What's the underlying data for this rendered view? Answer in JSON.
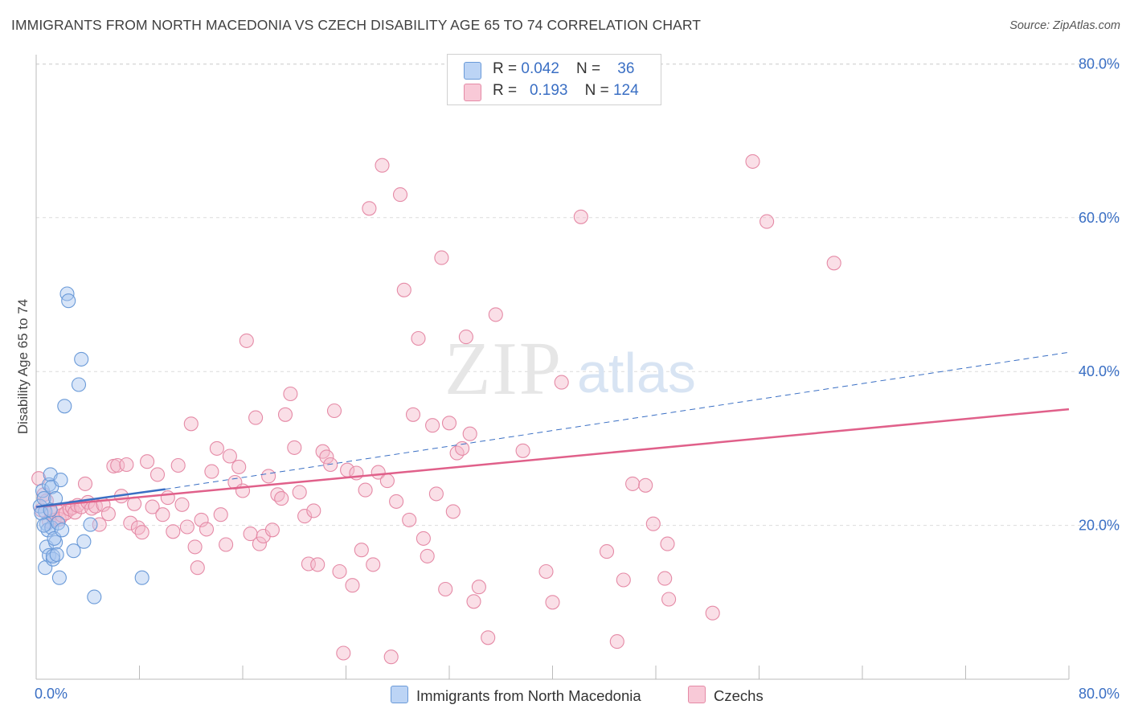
{
  "title": "IMMIGRANTS FROM NORTH MACEDONIA VS CZECH DISABILITY AGE 65 TO 74 CORRELATION CHART",
  "source": "Source: ZipAtlas.com",
  "watermark": {
    "zip": "ZIP",
    "atlas": "atlas"
  },
  "legend_top": [
    {
      "r_label": "R = ",
      "r_value": "0.042",
      "n_label": "N = ",
      "n_value": "36"
    },
    {
      "r_label": "R = ",
      "r_value": "0.193",
      "n_label": "N = ",
      "n_value": "124"
    }
  ],
  "colors": {
    "blue_fill": "#a9c6ef",
    "blue_stroke": "#6a9ad8",
    "blue_line": "#3a6fc4",
    "pink_fill": "#f5b7c9",
    "pink_stroke": "#e58aa6",
    "pink_line": "#e0608a",
    "axis_text": "#3a6fc4",
    "grid": "#dcdcdc"
  },
  "chart_data": {
    "type": "scatter",
    "title": "IMMIGRANTS FROM NORTH MACEDONIA VS CZECH DISABILITY AGE 65 TO 74 CORRELATION CHART",
    "xlabel": "",
    "ylabel": "Disability Age 65 to 74",
    "xlim": [
      0,
      80
    ],
    "ylim": [
      0,
      82
    ],
    "x_tick_labels": [
      "0.0%",
      "80.0%"
    ],
    "y_tick_labels": [
      "20.0%",
      "40.0%",
      "60.0%",
      "80.0%"
    ],
    "y_ticks": [
      20,
      40,
      60,
      80
    ],
    "grid": true,
    "legend_position": "bottom",
    "series": [
      {
        "name": "Immigrants from North Macedonia",
        "color": "#a9c6ef",
        "trend": {
          "x": [
            0,
            10
          ],
          "y": [
            22.4,
            24.7
          ],
          "extended_to": [
            80,
            42.5
          ]
        },
        "points": [
          [
            0.3,
            22.5
          ],
          [
            0.5,
            24.5
          ],
          [
            0.6,
            23.5
          ],
          [
            0.7,
            21.8
          ],
          [
            0.8,
            20.2
          ],
          [
            0.8,
            17.2
          ],
          [
            0.9,
            19.4
          ],
          [
            0.7,
            14.5
          ],
          [
            1.0,
            16.1
          ],
          [
            1.0,
            25.3
          ],
          [
            1.1,
            26.6
          ],
          [
            1.2,
            25.0
          ],
          [
            1.2,
            19.7
          ],
          [
            1.3,
            15.6
          ],
          [
            1.3,
            16.0
          ],
          [
            1.5,
            17.8
          ],
          [
            1.4,
            18.3
          ],
          [
            1.5,
            23.5
          ],
          [
            1.6,
            16.2
          ],
          [
            1.7,
            20.3
          ],
          [
            1.8,
            13.2
          ],
          [
            1.9,
            25.9
          ],
          [
            2.0,
            19.4
          ],
          [
            2.4,
            50.1
          ],
          [
            2.5,
            49.2
          ],
          [
            2.2,
            35.5
          ],
          [
            2.9,
            16.7
          ],
          [
            3.3,
            38.3
          ],
          [
            3.5,
            41.6
          ],
          [
            3.7,
            17.9
          ],
          [
            4.2,
            20.1
          ],
          [
            4.5,
            10.7
          ],
          [
            8.2,
            13.2
          ],
          [
            0.4,
            21.6
          ],
          [
            0.6,
            20.0
          ],
          [
            1.1,
            22.0
          ]
        ]
      },
      {
        "name": "Czechs",
        "color": "#f5b7c9",
        "trend": {
          "x": [
            0,
            80
          ],
          "y": [
            22.4,
            35.1
          ]
        },
        "points": [
          [
            0.2,
            26.1
          ],
          [
            0.4,
            22.0
          ],
          [
            0.6,
            24.0
          ],
          [
            0.8,
            23.2
          ],
          [
            1.0,
            20.5
          ],
          [
            1.2,
            21.6
          ],
          [
            1.4,
            20.7
          ],
          [
            1.6,
            21.9
          ],
          [
            1.8,
            20.8
          ],
          [
            2.0,
            21.3
          ],
          [
            2.3,
            21.6
          ],
          [
            2.6,
            22.1
          ],
          [
            2.8,
            22.3
          ],
          [
            3.0,
            21.7
          ],
          [
            3.2,
            22.6
          ],
          [
            3.5,
            22.4
          ],
          [
            3.8,
            25.4
          ],
          [
            4.0,
            23.0
          ],
          [
            4.3,
            22.2
          ],
          [
            4.6,
            22.5
          ],
          [
            4.9,
            20.1
          ],
          [
            5.2,
            22.7
          ],
          [
            5.6,
            21.5
          ],
          [
            6.0,
            27.7
          ],
          [
            6.3,
            27.8
          ],
          [
            6.6,
            23.8
          ],
          [
            7.0,
            27.9
          ],
          [
            7.3,
            20.3
          ],
          [
            7.6,
            22.8
          ],
          [
            7.9,
            19.7
          ],
          [
            8.2,
            19.1
          ],
          [
            8.6,
            28.3
          ],
          [
            9.0,
            22.4
          ],
          [
            9.4,
            26.6
          ],
          [
            9.8,
            21.4
          ],
          [
            10.2,
            23.6
          ],
          [
            10.6,
            19.2
          ],
          [
            11.0,
            27.8
          ],
          [
            11.3,
            22.7
          ],
          [
            11.7,
            19.8
          ],
          [
            12.0,
            33.2
          ],
          [
            12.3,
            17.2
          ],
          [
            12.5,
            14.5
          ],
          [
            12.8,
            20.7
          ],
          [
            13.2,
            19.5
          ],
          [
            13.6,
            27.0
          ],
          [
            14.0,
            30.0
          ],
          [
            14.3,
            21.4
          ],
          [
            14.7,
            17.5
          ],
          [
            15.0,
            29.0
          ],
          [
            15.4,
            25.6
          ],
          [
            15.7,
            27.6
          ],
          [
            16.0,
            24.5
          ],
          [
            16.3,
            44.0
          ],
          [
            16.6,
            18.9
          ],
          [
            17.0,
            34.0
          ],
          [
            17.3,
            17.6
          ],
          [
            17.6,
            18.6
          ],
          [
            18.0,
            26.4
          ],
          [
            18.3,
            19.4
          ],
          [
            18.7,
            24.0
          ],
          [
            19.0,
            23.5
          ],
          [
            19.3,
            34.4
          ],
          [
            19.7,
            37.1
          ],
          [
            20.0,
            30.1
          ],
          [
            20.4,
            24.3
          ],
          [
            20.8,
            21.2
          ],
          [
            21.1,
            15.0
          ],
          [
            21.5,
            21.9
          ],
          [
            21.8,
            14.9
          ],
          [
            22.2,
            29.6
          ],
          [
            22.5,
            28.9
          ],
          [
            22.8,
            27.9
          ],
          [
            23.1,
            34.9
          ],
          [
            23.5,
            14.0
          ],
          [
            23.8,
            3.4
          ],
          [
            24.1,
            27.2
          ],
          [
            24.5,
            12.2
          ],
          [
            24.8,
            26.8
          ],
          [
            25.2,
            16.8
          ],
          [
            25.5,
            24.6
          ],
          [
            25.8,
            61.2
          ],
          [
            26.1,
            14.9
          ],
          [
            26.5,
            26.9
          ],
          [
            26.8,
            66.8
          ],
          [
            27.2,
            25.8
          ],
          [
            27.5,
            2.9
          ],
          [
            27.9,
            23.1
          ],
          [
            28.2,
            63.0
          ],
          [
            28.5,
            50.6
          ],
          [
            28.9,
            20.7
          ],
          [
            29.2,
            34.4
          ],
          [
            29.6,
            44.3
          ],
          [
            30.0,
            18.3
          ],
          [
            30.3,
            16.0
          ],
          [
            30.7,
            33.0
          ],
          [
            31.0,
            24.1
          ],
          [
            31.4,
            54.8
          ],
          [
            31.7,
            11.7
          ],
          [
            32.0,
            33.3
          ],
          [
            32.3,
            21.8
          ],
          [
            32.6,
            29.4
          ],
          [
            33.0,
            30.0
          ],
          [
            33.3,
            44.5
          ],
          [
            33.6,
            31.9
          ],
          [
            33.9,
            10.1
          ],
          [
            34.3,
            12.0
          ],
          [
            35.0,
            5.4
          ],
          [
            35.6,
            47.4
          ],
          [
            37.7,
            29.7
          ],
          [
            39.5,
            14.0
          ],
          [
            40.0,
            10.0
          ],
          [
            40.7,
            38.6
          ],
          [
            42.2,
            60.1
          ],
          [
            44.2,
            16.6
          ],
          [
            45.0,
            4.9
          ],
          [
            45.5,
            12.9
          ],
          [
            46.2,
            25.4
          ],
          [
            47.2,
            25.2
          ],
          [
            47.8,
            20.2
          ],
          [
            48.7,
            13.1
          ],
          [
            48.9,
            17.6
          ],
          [
            49.0,
            10.4
          ],
          [
            52.4,
            8.6
          ],
          [
            55.5,
            67.3
          ],
          [
            56.6,
            59.5
          ],
          [
            61.8,
            54.1
          ]
        ]
      }
    ]
  }
}
